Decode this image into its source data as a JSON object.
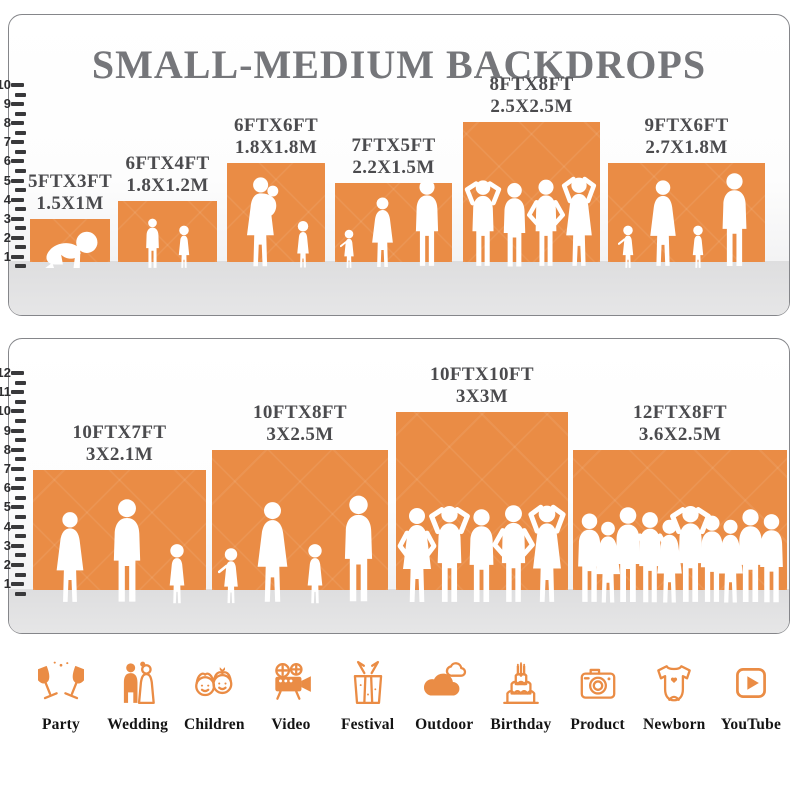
{
  "colors": {
    "accent": "#EA8C45",
    "title": "#75767A",
    "label": "#4B4B4E",
    "tick": "#39393B"
  },
  "panels": [
    {
      "title": "SMALL-MEDIUM BACKDROPS",
      "ruler": [
        "10",
        "9",
        "8",
        "7",
        "6",
        "5",
        "4",
        "3",
        "2",
        "1"
      ],
      "backdrops": [
        {
          "size_ft": "5FTX3FT",
          "size_m": "1.5X1M",
          "people_silhouette": "crawling-baby"
        },
        {
          "size_ft": "6FTX4FT",
          "size_m": "1.8X1.2M",
          "people_silhouette": "boy-and-girl"
        },
        {
          "size_ft": "6FTX6FT",
          "size_m": "1.8X1.8M",
          "people_silhouette": "mother-holding-baby-and-girl"
        },
        {
          "size_ft": "7FTX5FT",
          "size_m": "2.2X1.5M",
          "people_silhouette": "toddler-woman-man"
        },
        {
          "size_ft": "8FTX8FT",
          "size_m": "2.5X2.5M",
          "people_silhouette": "four-adults-posing"
        },
        {
          "size_ft": "9FTX6FT",
          "size_m": "2.7X1.8M",
          "people_silhouette": "family-of-four-holding-hands"
        }
      ]
    },
    {
      "ruler": [
        "12",
        "11",
        "10",
        "9",
        "8",
        "7",
        "6",
        "5",
        "4",
        "3",
        "2",
        "1"
      ],
      "backdrops": [
        {
          "size_ft": "10FTX7FT",
          "size_m": "3X2.1M",
          "people_silhouette": "woman-man-girl"
        },
        {
          "size_ft": "10FTX8FT",
          "size_m": "3X2.5M",
          "people_silhouette": "family-of-four-holding-hands"
        },
        {
          "size_ft": "10FTX10FT",
          "size_m": "3X3M",
          "people_silhouette": "five-adults-posing"
        },
        {
          "size_ft": "12FTX8FT",
          "size_m": "3.6X2.5M",
          "people_silhouette": "crowd-of-ten-adults"
        }
      ]
    }
  ],
  "categories": [
    {
      "label": "Party",
      "icon": "party-glasses-icon"
    },
    {
      "label": "Wedding",
      "icon": "wedding-couple-icon"
    },
    {
      "label": "Children",
      "icon": "children-faces-icon"
    },
    {
      "label": "Video",
      "icon": "video-camera-icon"
    },
    {
      "label": "Festival",
      "icon": "gift-box-icon"
    },
    {
      "label": "Outdoor",
      "icon": "clouds-icon"
    },
    {
      "label": "Birthday",
      "icon": "birthday-cake-icon"
    },
    {
      "label": "Product",
      "icon": "photo-camera-icon"
    },
    {
      "label": "Newborn",
      "icon": "baby-onesie-icon"
    },
    {
      "label": "YouTube",
      "icon": "youtube-play-icon"
    }
  ]
}
